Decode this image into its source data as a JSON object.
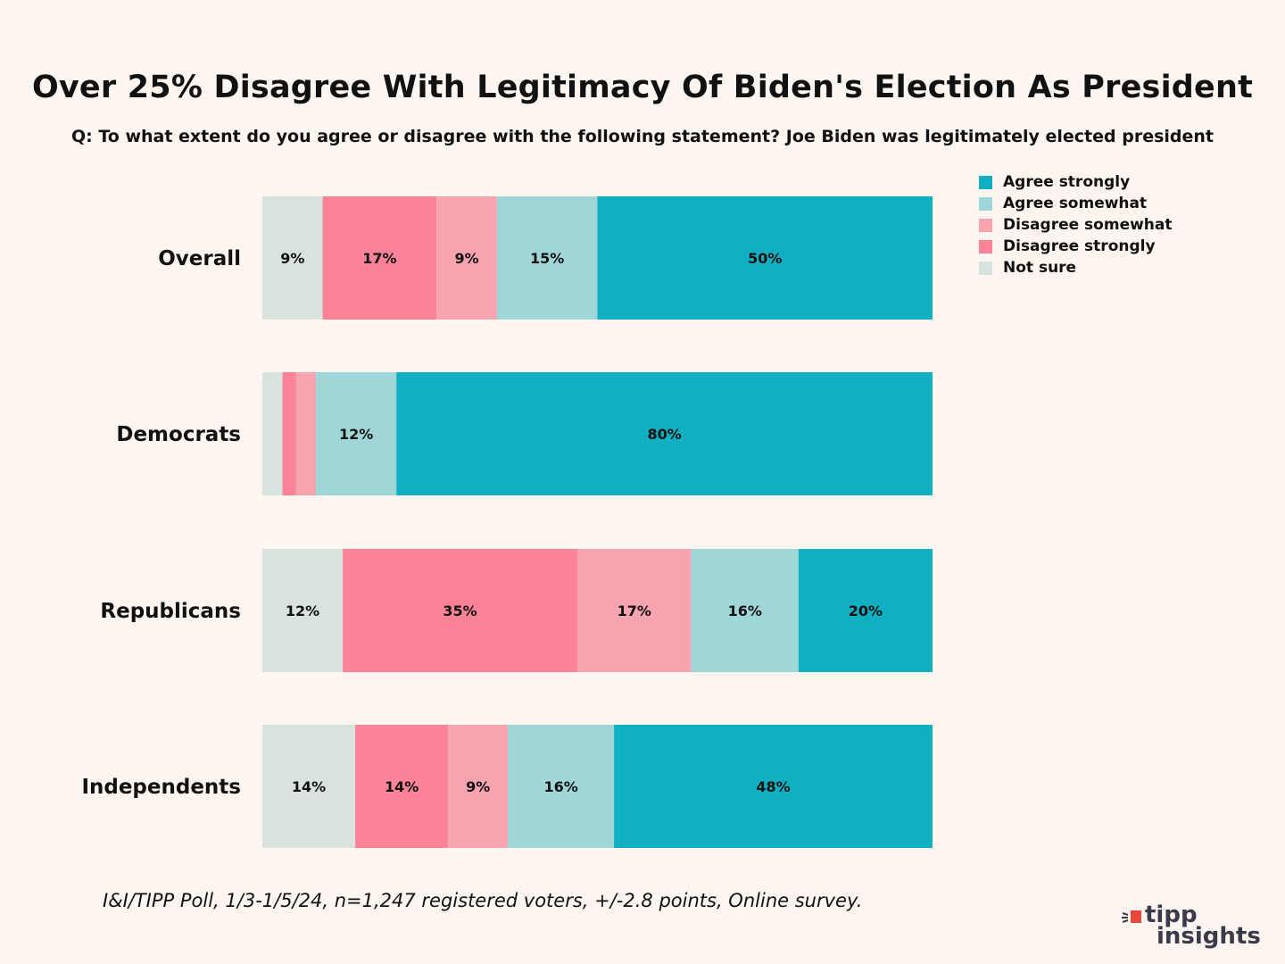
{
  "title": "Over 25% Disagree With Legitimacy Of Biden's Election As President",
  "subtitle": "Q: To what extent do you agree or disagree with the following statement? Joe Biden was legitimately elected president",
  "footnote": "I&I/TIPP Poll, 1/3-1/5/24, n=1,247 registered voters, +/-2.8 points, Online survey.",
  "logo": {
    "line1": "tipp",
    "line2": "insights",
    "accent_color": "#e8473c",
    "text_color": "#3a3a4a"
  },
  "chart_data": {
    "type": "bar",
    "orientation": "horizontal",
    "stacked": true,
    "categories": [
      "Overall",
      "Democrats",
      "Republicans",
      "Independents"
    ],
    "series": [
      {
        "name": "Not sure",
        "color": "#d9e3de",
        "values": [
          9,
          3,
          12,
          14
        ],
        "labels": [
          "9%",
          "",
          "12%",
          "14%"
        ]
      },
      {
        "name": "Disagree strongly",
        "color": "#fa8397",
        "values": [
          17,
          2,
          35,
          14
        ],
        "labels": [
          "17%",
          "",
          "35%",
          "14%"
        ]
      },
      {
        "name": "Disagree somewhat",
        "color": "#f6a4b0",
        "values": [
          9,
          3,
          17,
          9
        ],
        "labels": [
          "9%",
          "",
          "17%",
          "9%"
        ]
      },
      {
        "name": "Agree somewhat",
        "color": "#9fd7d9",
        "values": [
          15,
          12,
          16,
          16
        ],
        "labels": [
          "15%",
          "12%",
          "16%",
          "16%"
        ]
      },
      {
        "name": "Agree strongly",
        "color": "#11afc2",
        "values": [
          50,
          80,
          20,
          48
        ],
        "labels": [
          "50%",
          "80%",
          "20%",
          "48%"
        ]
      }
    ],
    "legend": {
      "placement": "top-right",
      "order": [
        "Agree strongly",
        "Agree somewhat",
        "Disagree somewhat",
        "Disagree strongly",
        "Not sure"
      ]
    },
    "grid": false
  }
}
